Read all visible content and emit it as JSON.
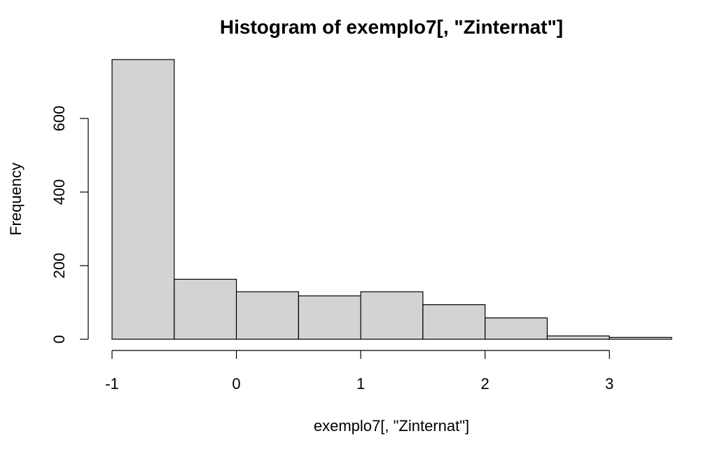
{
  "chart_data": {
    "type": "bar",
    "title": "Histogram of exemplo7[, \"Zinternat\"]",
    "xlabel": "exemplo7[, \"Zinternat\"]",
    "ylabel": "Frequency",
    "bar_color": "#d3d3d3",
    "bin_edges": [
      -1,
      -0.5,
      0,
      0.5,
      1,
      1.5,
      2,
      2.5,
      3,
      3.5
    ],
    "values": [
      760,
      163,
      129,
      118,
      129,
      94,
      58,
      9,
      5
    ],
    "xticks": [
      -1,
      0,
      1,
      2,
      3
    ],
    "xtick_labels": [
      "-1",
      "0",
      "1",
      "2",
      "3"
    ],
    "yticks": [
      0,
      200,
      400,
      600
    ],
    "ytick_labels": [
      "0",
      "200",
      "400",
      "600"
    ],
    "xlim": [
      -1,
      3.5
    ],
    "ylim": [
      0,
      760
    ],
    "grid": false
  }
}
